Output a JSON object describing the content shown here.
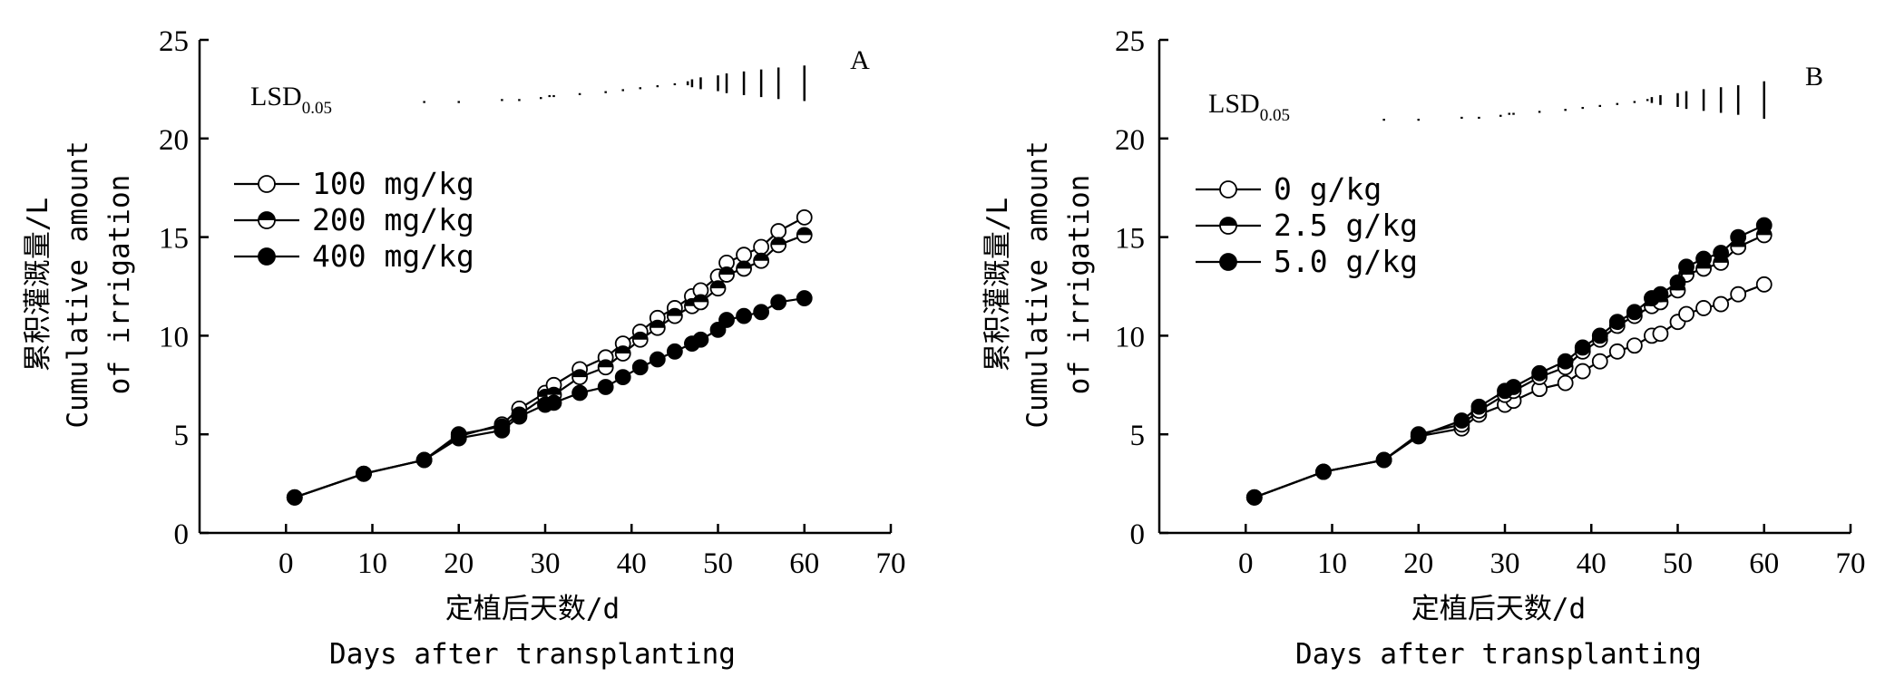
{
  "chart_data": [
    {
      "type": "line",
      "panel_label": "A",
      "xlabel_zh": "定植后天数/d",
      "xlabel_en": "Days after transplanting",
      "ylabel_zh": "累积灌溉量/L",
      "ylabel_en_1": "Cumulative amount",
      "ylabel_en_2": "of irrigation",
      "xlim": [
        -10,
        70
      ],
      "ylim": [
        0,
        25
      ],
      "xticks": [
        0,
        10,
        20,
        30,
        40,
        50,
        60,
        70
      ],
      "yticks": [
        0,
        5,
        10,
        15,
        20,
        25
      ],
      "legend_position": "upper-left",
      "lsd_label": "LSD",
      "lsd_sub": "0.05",
      "lsd": [
        {
          "x": 16,
          "y": 21.9
        },
        {
          "x": 20,
          "y": 21.9
        },
        {
          "x": 25,
          "y": 22.0
        },
        {
          "x": 27,
          "y": 22.0
        },
        {
          "x": 29.5,
          "y": 22.1
        },
        {
          "x": 30.5,
          "y": 22.2
        },
        {
          "x": 31,
          "y": 22.2
        },
        {
          "x": 34,
          "y": 22.3
        },
        {
          "x": 37,
          "y": 22.4
        },
        {
          "x": 39,
          "y": 22.5
        },
        {
          "x": 41,
          "y": 22.6
        },
        {
          "x": 43,
          "y": 22.7
        },
        {
          "x": 45,
          "y": 22.8
        },
        {
          "x": 46.5,
          "y": 22.9
        },
        {
          "x": 47,
          "y": 23.0
        },
        {
          "x": 48,
          "y": 23.1
        },
        {
          "x": 50,
          "y": 23.2
        },
        {
          "x": 51,
          "y": 23.3
        },
        {
          "x": 53,
          "y": 23.4
        },
        {
          "x": 55,
          "y": 23.5
        },
        {
          "x": 57,
          "y": 23.6
        },
        {
          "x": 60,
          "y": 23.7
        }
      ],
      "x": [
        1,
        9,
        16,
        20,
        25,
        27,
        30,
        31,
        34,
        37,
        39,
        41,
        43,
        45,
        47,
        48,
        50,
        51,
        53,
        55,
        57,
        60
      ],
      "series": [
        {
          "name": "100 mg/kg",
          "marker": "open",
          "values": [
            1.8,
            3.0,
            3.7,
            4.9,
            5.5,
            6.3,
            7.1,
            7.5,
            8.3,
            8.9,
            9.6,
            10.2,
            10.9,
            11.4,
            12.0,
            12.3,
            13.0,
            13.7,
            14.1,
            14.5,
            15.3,
            16.0
          ]
        },
        {
          "name": "200 mg/kg",
          "marker": "half",
          "values": [
            1.8,
            3.0,
            3.7,
            5.0,
            5.4,
            6.0,
            6.9,
            7.0,
            7.9,
            8.4,
            9.1,
            9.8,
            10.4,
            11.0,
            11.5,
            11.7,
            12.4,
            13.1,
            13.4,
            13.8,
            14.6,
            15.1
          ]
        },
        {
          "name": "400 mg/kg",
          "marker": "filled",
          "values": [
            1.8,
            3.0,
            3.7,
            4.8,
            5.2,
            5.9,
            6.5,
            6.6,
            7.1,
            7.4,
            7.9,
            8.4,
            8.8,
            9.2,
            9.6,
            9.8,
            10.3,
            10.8,
            11.0,
            11.2,
            11.7,
            11.9
          ]
        }
      ]
    },
    {
      "type": "line",
      "panel_label": "B",
      "xlabel_zh": "定植后天数/d",
      "xlabel_en": "Days after transplanting",
      "ylabel_zh": "累积灌溉量/L",
      "ylabel_en_1": "Cumulative amount",
      "ylabel_en_2": "of irrigation",
      "xlim": [
        -10,
        70
      ],
      "ylim": [
        0,
        25
      ],
      "xticks": [
        0,
        10,
        20,
        30,
        40,
        50,
        60,
        70
      ],
      "yticks": [
        0,
        5,
        10,
        15,
        20,
        25
      ],
      "legend_position": "upper-left",
      "lsd_label": "LSD",
      "lsd_sub": "0.05",
      "lsd": [
        {
          "x": 16,
          "y": 21.0
        },
        {
          "x": 20,
          "y": 21.0
        },
        {
          "x": 25,
          "y": 21.1
        },
        {
          "x": 27,
          "y": 21.1
        },
        {
          "x": 29.5,
          "y": 21.2
        },
        {
          "x": 30.5,
          "y": 21.3
        },
        {
          "x": 31,
          "y": 21.3
        },
        {
          "x": 34,
          "y": 21.4
        },
        {
          "x": 37,
          "y": 21.5
        },
        {
          "x": 39,
          "y": 21.6
        },
        {
          "x": 41,
          "y": 21.7
        },
        {
          "x": 43,
          "y": 21.8
        },
        {
          "x": 45,
          "y": 21.9
        },
        {
          "x": 46.5,
          "y": 22.0
        },
        {
          "x": 47,
          "y": 22.1
        },
        {
          "x": 48,
          "y": 22.2
        },
        {
          "x": 50,
          "y": 22.3
        },
        {
          "x": 51,
          "y": 22.4
        },
        {
          "x": 53,
          "y": 22.5
        },
        {
          "x": 55,
          "y": 22.6
        },
        {
          "x": 57,
          "y": 22.7
        },
        {
          "x": 60,
          "y": 22.9
        }
      ],
      "x": [
        1,
        9,
        16,
        20,
        25,
        27,
        30,
        31,
        34,
        37,
        39,
        41,
        43,
        45,
        47,
        48,
        50,
        51,
        53,
        55,
        57,
        60
      ],
      "series": [
        {
          "name": "0 g/kg",
          "marker": "open",
          "values": [
            1.8,
            3.1,
            3.7,
            4.9,
            5.3,
            6.0,
            6.5,
            6.7,
            7.3,
            7.6,
            8.2,
            8.7,
            9.2,
            9.5,
            10.0,
            10.1,
            10.7,
            11.1,
            11.4,
            11.6,
            12.1,
            12.6
          ]
        },
        {
          "name": "2.5 g/kg",
          "marker": "half",
          "values": [
            1.8,
            3.1,
            3.7,
            5.0,
            5.5,
            6.2,
            7.0,
            7.2,
            7.9,
            8.4,
            9.2,
            9.8,
            10.5,
            11.0,
            11.5,
            11.7,
            12.3,
            13.1,
            13.4,
            13.7,
            14.5,
            15.1
          ]
        },
        {
          "name": "5.0 g/kg",
          "marker": "filled",
          "values": [
            1.8,
            3.1,
            3.7,
            4.9,
            5.7,
            6.4,
            7.2,
            7.4,
            8.1,
            8.7,
            9.4,
            10.0,
            10.7,
            11.2,
            11.9,
            12.1,
            12.7,
            13.5,
            13.9,
            14.2,
            15.0,
            15.6
          ]
        }
      ]
    }
  ]
}
